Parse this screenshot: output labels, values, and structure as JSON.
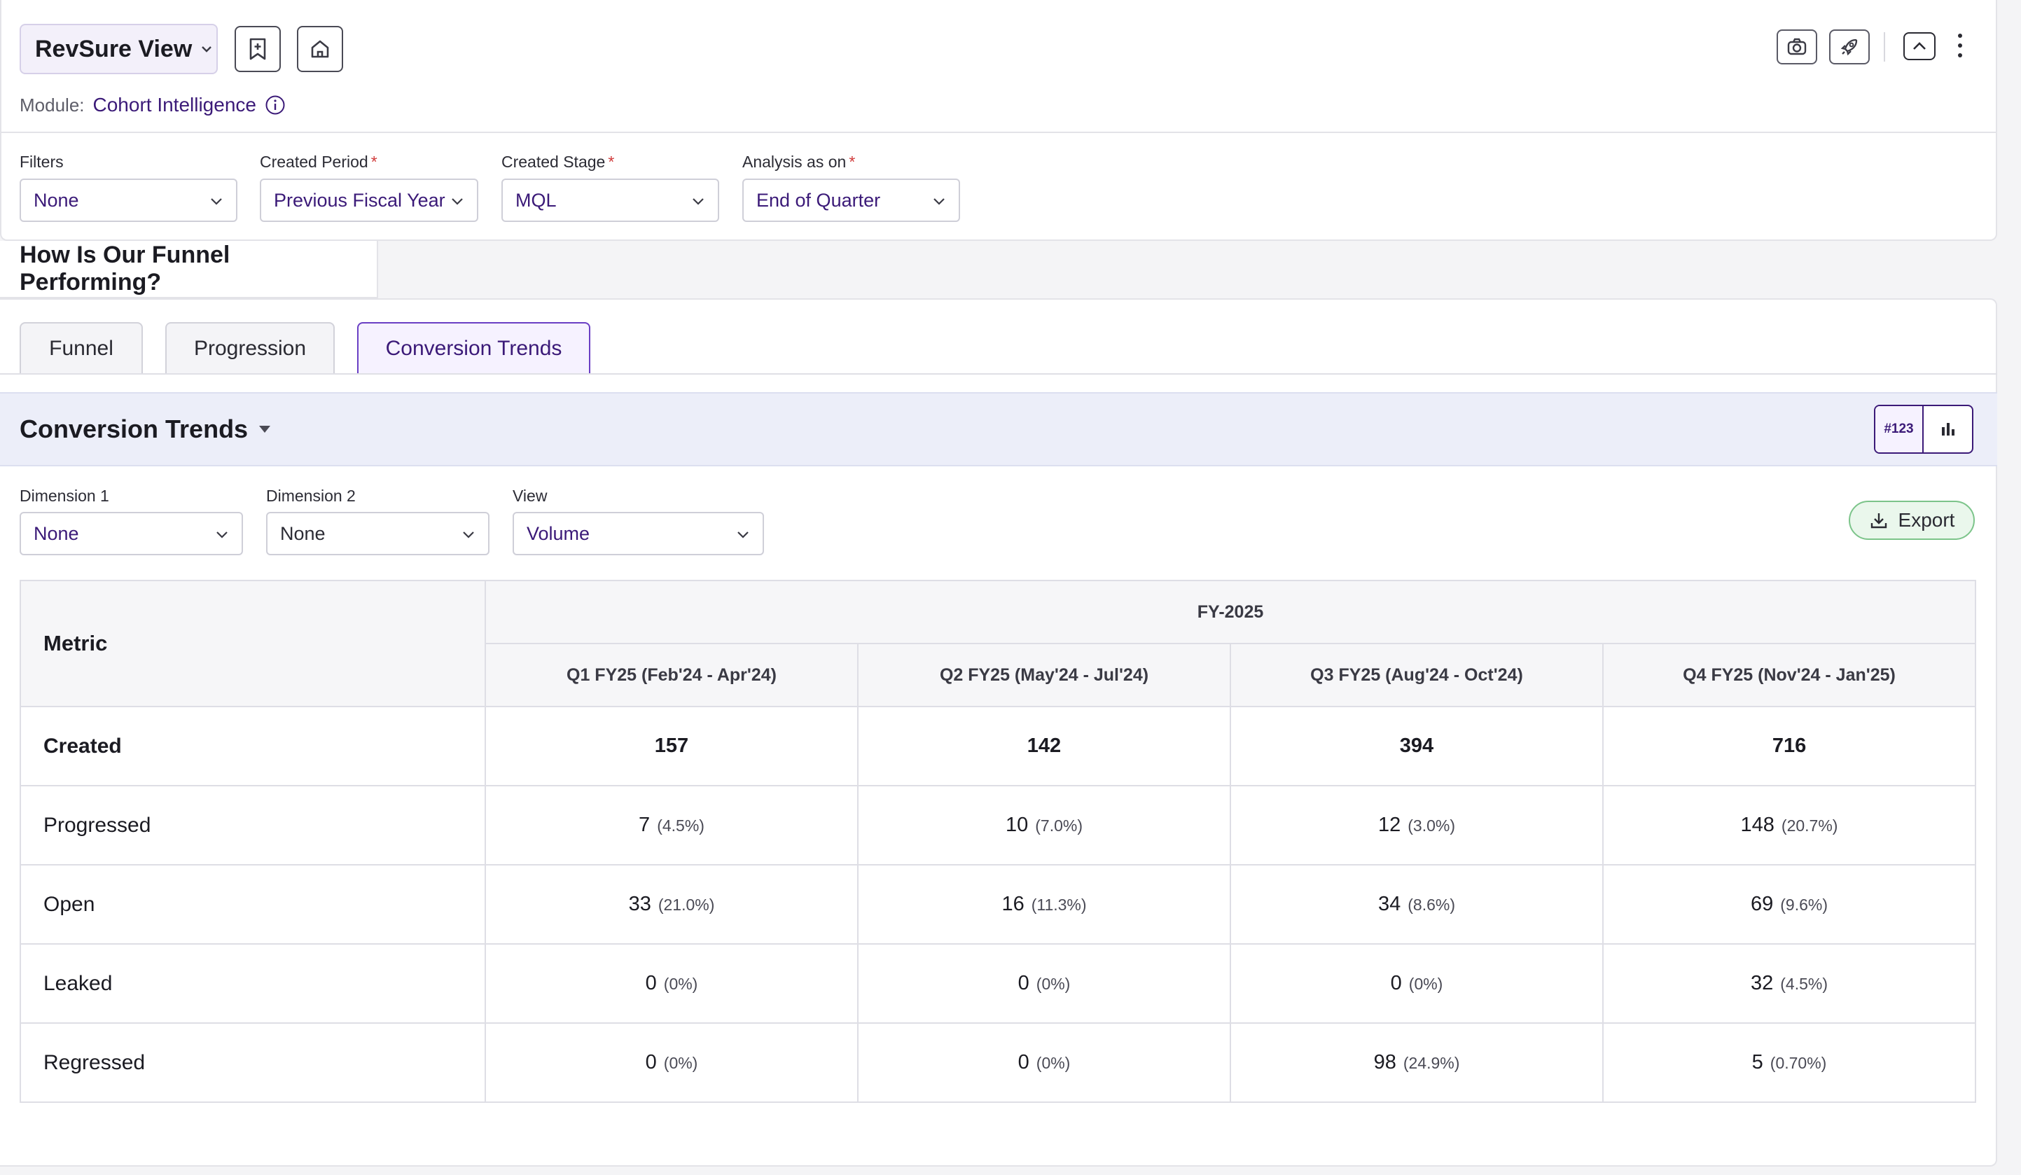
{
  "header": {
    "view_title": "RevSure View",
    "module_label": "Module:",
    "module_value": "Cohort Intelligence"
  },
  "filters": {
    "filters_label": "Filters",
    "filters_value": "None",
    "created_period_label": "Created Period",
    "created_period_value": "Previous Fiscal Year",
    "created_stage_label": "Created Stage",
    "created_stage_value": "MQL",
    "analysis_label": "Analysis as on",
    "analysis_value": "End of Quarter",
    "required_mark": "*"
  },
  "section": {
    "title": "How Is Our Funnel Performing?"
  },
  "tabs": [
    {
      "label": "Funnel"
    },
    {
      "label": "Progression"
    },
    {
      "label": "Conversion Trends"
    }
  ],
  "trends": {
    "title": "Conversion Trends",
    "toggle_number_label": "#123",
    "dimension1_label": "Dimension 1",
    "dimension1_value": "None",
    "dimension2_label": "Dimension 2",
    "dimension2_value": "None",
    "view_label": "View",
    "view_value": "Volume",
    "export_label": "Export"
  },
  "table": {
    "metric_header": "Metric",
    "group_header": "FY-2025",
    "columns": [
      "Q1 FY25 (Feb'24 - Apr'24)",
      "Q2 FY25 (May'24 - Jul'24)",
      "Q3 FY25 (Aug'24 - Oct'24)",
      "Q4 FY25 (Nov'24 - Jan'25)"
    ],
    "rows": [
      {
        "metric": "Created",
        "cells": [
          {
            "v": "157",
            "p": ""
          },
          {
            "v": "142",
            "p": ""
          },
          {
            "v": "394",
            "p": ""
          },
          {
            "v": "716",
            "p": ""
          }
        ]
      },
      {
        "metric": "Progressed",
        "cells": [
          {
            "v": "7",
            "p": "(4.5%)"
          },
          {
            "v": "10",
            "p": "(7.0%)"
          },
          {
            "v": "12",
            "p": "(3.0%)"
          },
          {
            "v": "148",
            "p": "(20.7%)"
          }
        ]
      },
      {
        "metric": "Open",
        "cells": [
          {
            "v": "33",
            "p": "(21.0%)"
          },
          {
            "v": "16",
            "p": "(11.3%)"
          },
          {
            "v": "34",
            "p": "(8.6%)"
          },
          {
            "v": "69",
            "p": "(9.6%)"
          }
        ]
      },
      {
        "metric": "Leaked",
        "cells": [
          {
            "v": "0",
            "p": "(0%)"
          },
          {
            "v": "0",
            "p": "(0%)"
          },
          {
            "v": "0",
            "p": "(0%)"
          },
          {
            "v": "32",
            "p": "(4.5%)"
          }
        ]
      },
      {
        "metric": "Regressed",
        "cells": [
          {
            "v": "0",
            "p": "(0%)"
          },
          {
            "v": "0",
            "p": "(0%)"
          },
          {
            "v": "98",
            "p": "(24.9%)"
          },
          {
            "v": "5",
            "p": "(0.70%)"
          }
        ]
      }
    ]
  },
  "colors": {
    "accent": "#3b1a78",
    "export_bg": "#eaf7ec",
    "band_bg": "#eceef9"
  }
}
